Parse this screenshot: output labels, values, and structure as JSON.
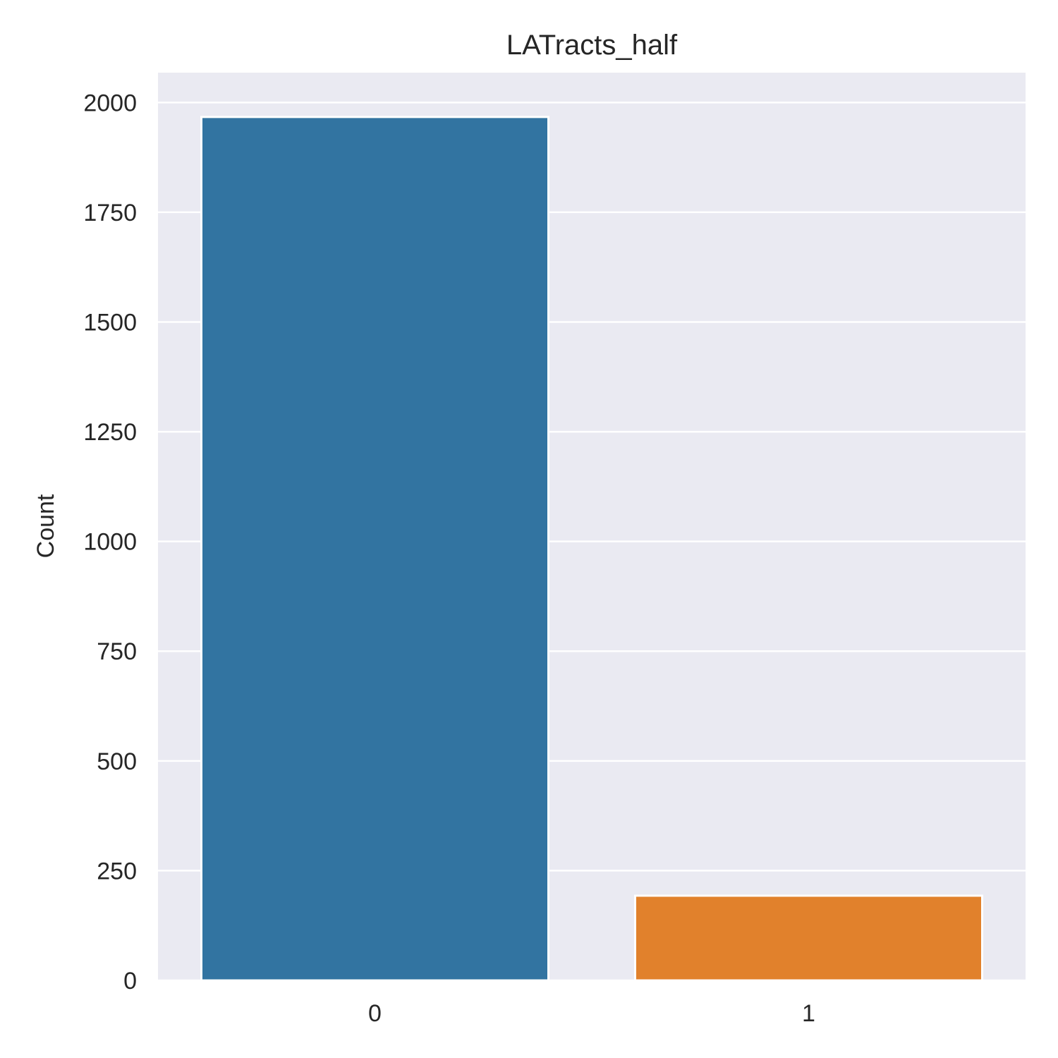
{
  "chart_data": {
    "type": "bar",
    "title": "LATracts_half",
    "xlabel": "",
    "ylabel": "Count",
    "categories": [
      "0",
      "1"
    ],
    "values": [
      1967,
      193
    ],
    "ylim": [
      0,
      2068
    ],
    "yticks": [
      0,
      250,
      500,
      750,
      1000,
      1250,
      1500,
      1750,
      2000
    ],
    "ytick_labels": [
      "0",
      "250",
      "500",
      "750",
      "1000",
      "1250",
      "1500",
      "1750",
      "2000"
    ],
    "grid": true,
    "colors": {
      "bars": [
        "#3274a1",
        "#e1812c"
      ],
      "plot_background": "#eaeaf2",
      "grid": "#ffffff"
    }
  }
}
